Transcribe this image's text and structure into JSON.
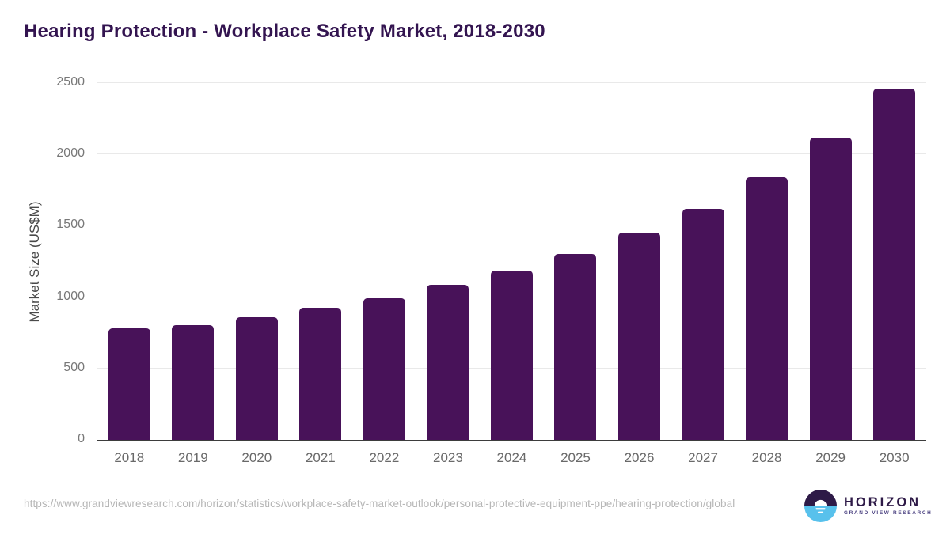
{
  "title": "Hearing Protection - Workplace Safety Market, 2018-2030",
  "chart_data": {
    "type": "bar",
    "categories": [
      "2018",
      "2019",
      "2020",
      "2021",
      "2022",
      "2023",
      "2024",
      "2025",
      "2026",
      "2027",
      "2028",
      "2029",
      "2030"
    ],
    "values": [
      780,
      805,
      860,
      925,
      995,
      1085,
      1185,
      1305,
      1450,
      1620,
      1840,
      2115,
      2460
    ],
    "title": "Hearing Protection - Workplace Safety Market, 2018-2030",
    "xlabel": "",
    "ylabel": "Market Size (US$M)",
    "ylim": [
      0,
      2500
    ],
    "yticks": [
      0,
      500,
      1000,
      1500,
      2000,
      2500
    ],
    "grid": true,
    "legend": "none",
    "bar_color": "#481259"
  },
  "colors": {
    "title": "#331450",
    "bar": "#481259",
    "axis_line": "#3d3d3d",
    "gridline": "#e9e9e9",
    "y_tick": "#787878",
    "x_tick": "#696969",
    "url_text": "#b6b6b6",
    "logo_purple": "#2e1a47",
    "logo_blue": "#58c1ec",
    "logo_subtitle": "#4a4080"
  },
  "footer": {
    "source_url": "https://www.grandviewresearch.com/horizon/statistics/workplace-safety-market-outlook/personal-protective-equipment-ppe/hearing-protection/global",
    "logo": {
      "brand": "HORIZON",
      "subtitle": "GRAND VIEW RESEARCH"
    }
  }
}
